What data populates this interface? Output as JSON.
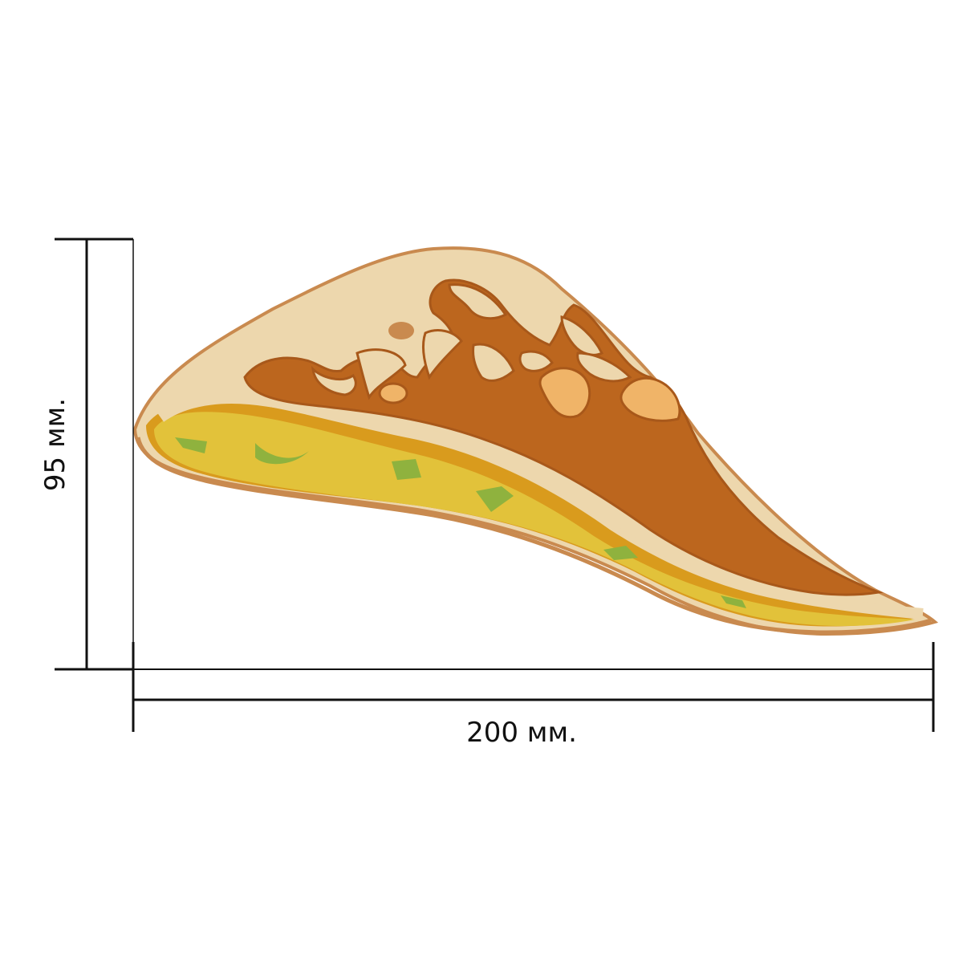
{
  "dimensions": {
    "height_label": "95 мм.",
    "width_label": "200 мм."
  },
  "colors": {
    "dimension_line": "#111111",
    "crust": "#edd7ad",
    "crust_edge": "#c98a4f",
    "baked_top": "#bc661e",
    "baked_top_edge": "#a8581a",
    "light_spot": "#f0b468",
    "dark_spot": "#c98a4f",
    "filling": "#e2c23a",
    "filling_shadow": "#d99b1d",
    "greens": "#8fb23e"
  },
  "icons": {
    "product": "quesadilla-slice-icon"
  }
}
